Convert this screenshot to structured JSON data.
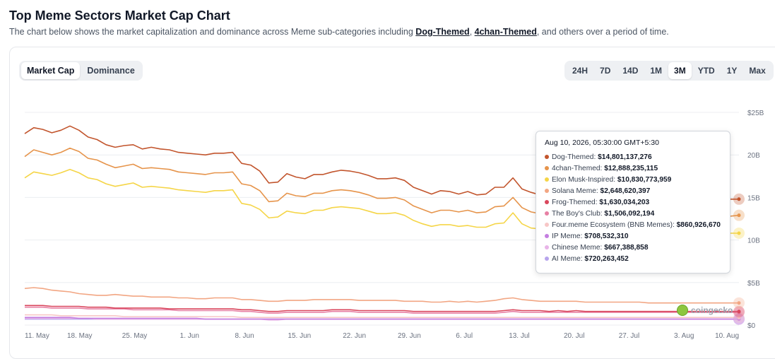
{
  "header": {
    "title": "Top Meme Sectors Market Cap Chart",
    "subtitle_before": "The chart below shows the market capitalization and dominance across Meme sub-categories including ",
    "link1": "Dog-Themed",
    "sep": ", ",
    "link2": "4chan-Themed",
    "subtitle_after": ", and others over a period of time."
  },
  "toggle": {
    "market_cap": "Market Cap",
    "dominance": "Dominance"
  },
  "ranges": [
    "24H",
    "7D",
    "14D",
    "1M",
    "3M",
    "YTD",
    "1Y",
    "Max"
  ],
  "active_range": "3M",
  "tooltip": {
    "date": "Aug 10, 2026, 05:30:00 GMT+5:30",
    "rows": [
      {
        "name": "Dog-Themed:",
        "value": "$14,801,137,276",
        "color": "#c2552d"
      },
      {
        "name": "4chan-Themed:",
        "value": "$12,888,235,115",
        "color": "#e6944b"
      },
      {
        "name": "Elon Musk-Inspired:",
        "value": "$10,830,773,959",
        "color": "#f5d547"
      },
      {
        "name": "Solana Meme:",
        "value": "$2,648,620,397",
        "color": "#f2a683"
      },
      {
        "name": "Frog-Themed:",
        "value": "$1,630,034,203",
        "color": "#d9465c"
      },
      {
        "name": "The Boy's Club:",
        "value": "$1,506,092,194",
        "color": "#e780a4"
      },
      {
        "name": "Four.meme Ecosystem (BNB Memes):",
        "value": "$860,926,670",
        "color": "#f7c6c6"
      },
      {
        "name": "IP Meme:",
        "value": "$708,532,310",
        "color": "#c47ee0"
      },
      {
        "name": "Chinese Meme:",
        "value": "$667,388,858",
        "color": "#e8b4e8"
      },
      {
        "name": "AI Meme:",
        "value": "$720,263,452",
        "color": "#b7a4ec"
      }
    ]
  },
  "brand": "coingecko",
  "chart_data": {
    "type": "line",
    "x_tick_labels": [
      "11. May",
      "18. May",
      "25. May",
      "1. Jun",
      "8. Jun",
      "15. Jun",
      "22. Jun",
      "29. Jun",
      "6. Jul",
      "13. Jul",
      "20. Jul",
      "27. Jul",
      "3. Aug",
      "10. Aug"
    ],
    "y_tick_labels": [
      "$0",
      "$5B",
      "10B",
      "15B",
      "20B",
      "$25B"
    ],
    "ylim": [
      0,
      25
    ],
    "y_unit": "billion USD",
    "grid": true,
    "series": [
      {
        "name": "Dog-Themed",
        "color": "#c2552d",
        "values": [
          22.5,
          23.2,
          23.0,
          22.6,
          22.9,
          23.4,
          22.9,
          22.1,
          21.8,
          21.2,
          20.9,
          21.1,
          21.2,
          20.7,
          20.9,
          20.7,
          20.6,
          20.3,
          20.2,
          20.1,
          20.0,
          20.2,
          20.2,
          20.3,
          19.0,
          18.8,
          18.1,
          16.7,
          16.8,
          17.8,
          17.4,
          17.2,
          17.7,
          17.7,
          18.0,
          18.2,
          18.1,
          17.9,
          17.6,
          17.2,
          17.2,
          17.3,
          17.0,
          16.2,
          15.8,
          15.4,
          15.8,
          15.7,
          15.4,
          15.7,
          15.3,
          15.4,
          16.2,
          16.2,
          17.3,
          16.0,
          15.6,
          15.3,
          15.2,
          15.5,
          15.2,
          15.4,
          15.0,
          15.0,
          14.8,
          14.9,
          14.8,
          14.7,
          14.8,
          14.7,
          14.8,
          14.7,
          14.8,
          14.8,
          14.9,
          14.8,
          14.8,
          14.8,
          14.8,
          14.8
        ]
      },
      {
        "name": "4chan-Themed",
        "color": "#e6944b",
        "values": [
          19.8,
          20.6,
          20.3,
          20.0,
          20.3,
          20.8,
          20.4,
          19.6,
          19.4,
          18.9,
          18.5,
          18.7,
          18.9,
          18.4,
          18.5,
          18.4,
          18.3,
          18.0,
          17.9,
          17.8,
          17.7,
          17.9,
          17.9,
          18.0,
          16.6,
          16.4,
          15.8,
          14.5,
          14.6,
          15.5,
          15.2,
          15.1,
          15.5,
          15.5,
          15.8,
          15.9,
          15.8,
          15.6,
          15.3,
          14.9,
          14.9,
          15.0,
          14.7,
          14.0,
          13.6,
          13.2,
          13.5,
          13.5,
          13.3,
          13.5,
          13.2,
          13.3,
          13.9,
          14.0,
          15.0,
          13.8,
          13.3,
          13.1,
          13.1,
          13.3,
          13.1,
          13.3,
          12.9,
          12.9,
          12.8,
          12.9,
          12.8,
          12.7,
          12.8,
          12.7,
          12.8,
          12.7,
          12.8,
          12.8,
          12.9,
          12.8,
          12.8,
          12.9,
          12.8,
          12.9
        ]
      },
      {
        "name": "Elon Musk-Inspired",
        "color": "#f5d547",
        "values": [
          17.3,
          18.0,
          17.8,
          17.6,
          17.9,
          18.3,
          17.9,
          17.3,
          17.1,
          16.6,
          16.3,
          16.5,
          16.7,
          16.2,
          16.3,
          16.2,
          16.1,
          15.9,
          15.8,
          15.7,
          15.6,
          15.8,
          15.8,
          15.9,
          14.3,
          14.1,
          13.6,
          12.6,
          12.7,
          13.4,
          13.2,
          13.1,
          13.5,
          13.5,
          13.8,
          13.9,
          13.8,
          13.7,
          13.4,
          13.1,
          13.1,
          13.2,
          12.9,
          12.3,
          11.9,
          11.6,
          11.8,
          11.8,
          11.6,
          11.7,
          11.5,
          11.5,
          11.9,
          12.0,
          13.2,
          11.9,
          11.4,
          11.3,
          11.2,
          11.4,
          11.2,
          11.3,
          11.0,
          11.0,
          10.9,
          11.0,
          10.9,
          10.8,
          10.9,
          10.8,
          10.9,
          10.8,
          10.9,
          10.8,
          10.9,
          10.8,
          10.8,
          10.9,
          10.8,
          10.8
        ]
      },
      {
        "name": "Solana Meme",
        "color": "#f2a683",
        "values": [
          4.3,
          4.4,
          4.3,
          4.1,
          4.0,
          3.9,
          3.7,
          3.6,
          3.5,
          3.5,
          3.6,
          3.5,
          3.4,
          3.4,
          3.3,
          3.3,
          3.3,
          3.2,
          3.2,
          3.1,
          3.1,
          3.2,
          3.2,
          3.2,
          3.0,
          3.0,
          2.9,
          2.8,
          2.8,
          2.9,
          2.9,
          2.9,
          3.0,
          3.0,
          3.0,
          3.0,
          3.0,
          2.9,
          2.9,
          2.9,
          2.9,
          2.9,
          2.8,
          2.8,
          2.8,
          2.7,
          2.7,
          2.8,
          2.7,
          2.8,
          2.7,
          2.8,
          2.9,
          3.1,
          3.2,
          3.0,
          2.9,
          2.8,
          2.8,
          2.8,
          2.8,
          2.8,
          2.7,
          2.7,
          2.7,
          2.7,
          2.7,
          2.7,
          2.7,
          2.6,
          2.6,
          2.6,
          2.6,
          2.6,
          2.6,
          2.6,
          2.6,
          2.6,
          2.6,
          2.6
        ]
      },
      {
        "name": "Frog-Themed",
        "color": "#d9465c",
        "values": [
          2.3,
          2.3,
          2.3,
          2.2,
          2.2,
          2.2,
          2.2,
          2.1,
          2.1,
          2.1,
          2.0,
          2.0,
          2.0,
          2.0,
          2.0,
          2.0,
          1.9,
          1.9,
          1.9,
          1.9,
          1.9,
          1.9,
          1.9,
          1.9,
          1.8,
          1.8,
          1.7,
          1.6,
          1.6,
          1.7,
          1.7,
          1.7,
          1.7,
          1.7,
          1.8,
          1.8,
          1.8,
          1.7,
          1.7,
          1.7,
          1.7,
          1.7,
          1.7,
          1.6,
          1.6,
          1.6,
          1.6,
          1.6,
          1.6,
          1.6,
          1.6,
          1.6,
          1.6,
          1.7,
          1.8,
          1.7,
          1.7,
          1.7,
          1.6,
          1.7,
          1.6,
          1.7,
          1.6,
          1.6,
          1.6,
          1.6,
          1.6,
          1.6,
          1.6,
          1.6,
          1.6,
          1.6,
          1.6,
          1.6,
          1.6,
          1.6,
          1.6,
          1.6,
          1.6,
          1.6
        ]
      },
      {
        "name": "The Boy's Club",
        "color": "#e780a4",
        "values": [
          2.1,
          2.1,
          2.1,
          2.0,
          2.0,
          2.0,
          2.0,
          1.9,
          1.9,
          1.9,
          1.9,
          1.9,
          1.8,
          1.8,
          1.8,
          1.8,
          1.8,
          1.7,
          1.7,
          1.7,
          1.7,
          1.7,
          1.7,
          1.7,
          1.6,
          1.6,
          1.5,
          1.4,
          1.4,
          1.5,
          1.5,
          1.5,
          1.5,
          1.5,
          1.6,
          1.6,
          1.6,
          1.5,
          1.5,
          1.5,
          1.5,
          1.5,
          1.5,
          1.4,
          1.4,
          1.4,
          1.4,
          1.4,
          1.4,
          1.4,
          1.4,
          1.4,
          1.4,
          1.5,
          1.6,
          1.5,
          1.5,
          1.5,
          1.5,
          1.5,
          1.5,
          1.5,
          1.5,
          1.5,
          1.5,
          1.5,
          1.5,
          1.5,
          1.5,
          1.5,
          1.5,
          1.5,
          1.5,
          1.5,
          1.5,
          1.5,
          1.5,
          1.5,
          1.5,
          1.5
        ]
      },
      {
        "name": "Four.meme Ecosystem (BNB Memes)",
        "color": "#f7c6c6",
        "values": [
          1.2,
          1.2,
          1.2,
          1.2,
          1.1,
          1.1,
          1.1,
          1.1,
          1.1,
          1.1,
          1.1,
          1.0,
          1.0,
          1.0,
          1.0,
          1.0,
          1.0,
          1.0,
          1.0,
          1.0,
          1.0,
          1.0,
          1.0,
          1.0,
          0.9,
          0.9,
          0.9,
          0.9,
          0.9,
          0.9,
          0.9,
          0.9,
          0.9,
          0.9,
          0.9,
          0.9,
          0.9,
          0.9,
          0.9,
          0.9,
          0.9,
          0.9,
          0.9,
          0.9,
          0.9,
          0.9,
          0.9,
          0.9,
          0.9,
          0.9,
          0.9,
          0.9,
          0.9,
          0.9,
          0.9,
          0.9,
          0.9,
          0.9,
          0.9,
          0.9,
          0.9,
          0.9,
          0.9,
          0.9,
          0.9,
          0.9,
          0.9,
          0.9,
          0.9,
          0.9,
          0.9,
          0.9,
          0.9,
          0.9,
          0.9,
          0.9,
          0.9,
          0.9,
          0.9,
          0.9
        ]
      },
      {
        "name": "IP Meme",
        "color": "#c47ee0",
        "values": [
          0.9,
          0.9,
          0.9,
          0.9,
          0.9,
          0.9,
          0.8,
          0.8,
          0.8,
          0.8,
          0.8,
          0.8,
          0.8,
          0.8,
          0.8,
          0.8,
          0.8,
          0.8,
          0.8,
          0.8,
          0.7,
          0.7,
          0.7,
          0.7,
          0.7,
          0.7,
          0.7,
          0.7,
          0.7,
          0.7,
          0.7,
          0.7,
          0.7,
          0.7,
          0.7,
          0.7,
          0.7,
          0.7,
          0.7,
          0.7,
          0.7,
          0.7,
          0.7,
          0.7,
          0.7,
          0.7,
          0.7,
          0.7,
          0.7,
          0.7,
          0.7,
          0.7,
          0.7,
          0.7,
          0.7,
          0.7,
          0.7,
          0.7,
          0.7,
          0.7,
          0.7,
          0.7,
          0.7,
          0.7,
          0.7,
          0.7,
          0.7,
          0.7,
          0.7,
          0.7,
          0.7,
          0.7,
          0.7,
          0.7,
          0.7,
          0.7,
          0.7,
          0.7,
          0.7,
          0.7
        ]
      },
      {
        "name": "Chinese Meme",
        "color": "#e8b4e8",
        "values": [
          0.8,
          0.8,
          0.8,
          0.8,
          0.8,
          0.8,
          0.8,
          0.8,
          0.7,
          0.7,
          0.7,
          0.7,
          0.7,
          0.7,
          0.7,
          0.7,
          0.7,
          0.7,
          0.7,
          0.7,
          0.7,
          0.7,
          0.7,
          0.7,
          0.7,
          0.7,
          0.7,
          0.6,
          0.6,
          0.7,
          0.7,
          0.7,
          0.7,
          0.7,
          0.7,
          0.7,
          0.7,
          0.7,
          0.7,
          0.7,
          0.7,
          0.7,
          0.7,
          0.7,
          0.7,
          0.7,
          0.7,
          0.7,
          0.7,
          0.7,
          0.7,
          0.7,
          0.7,
          0.7,
          0.7,
          0.7,
          0.7,
          0.7,
          0.7,
          0.7,
          0.7,
          0.7,
          0.7,
          0.7,
          0.7,
          0.7,
          0.7,
          0.7,
          0.7,
          0.7,
          0.7,
          0.7,
          0.7,
          0.7,
          0.7,
          0.7,
          0.7,
          0.7,
          0.7,
          0.7
        ]
      },
      {
        "name": "AI Meme",
        "color": "#b7a4ec",
        "values": [
          0.7,
          0.7,
          0.7,
          0.7,
          0.7,
          0.7,
          0.7,
          0.7,
          0.7,
          0.7,
          0.7,
          0.7,
          0.7,
          0.7,
          0.7,
          0.7,
          0.7,
          0.7,
          0.7,
          0.7,
          0.7,
          0.7,
          0.7,
          0.7,
          0.7,
          0.7,
          0.7,
          0.7,
          0.7,
          0.7,
          0.7,
          0.7,
          0.7,
          0.7,
          0.7,
          0.7,
          0.7,
          0.7,
          0.7,
          0.7,
          0.7,
          0.7,
          0.7,
          0.7,
          0.7,
          0.7,
          0.7,
          0.7,
          0.7,
          0.7,
          0.7,
          0.7,
          0.7,
          0.7,
          0.7,
          0.7,
          0.7,
          0.7,
          0.7,
          0.7,
          0.7,
          0.7,
          0.7,
          0.7,
          0.7,
          0.7,
          0.7,
          0.7,
          0.7,
          0.7,
          0.7,
          0.7,
          0.7,
          0.7,
          0.7,
          0.7,
          0.7,
          0.7,
          0.7,
          0.7
        ]
      }
    ]
  }
}
